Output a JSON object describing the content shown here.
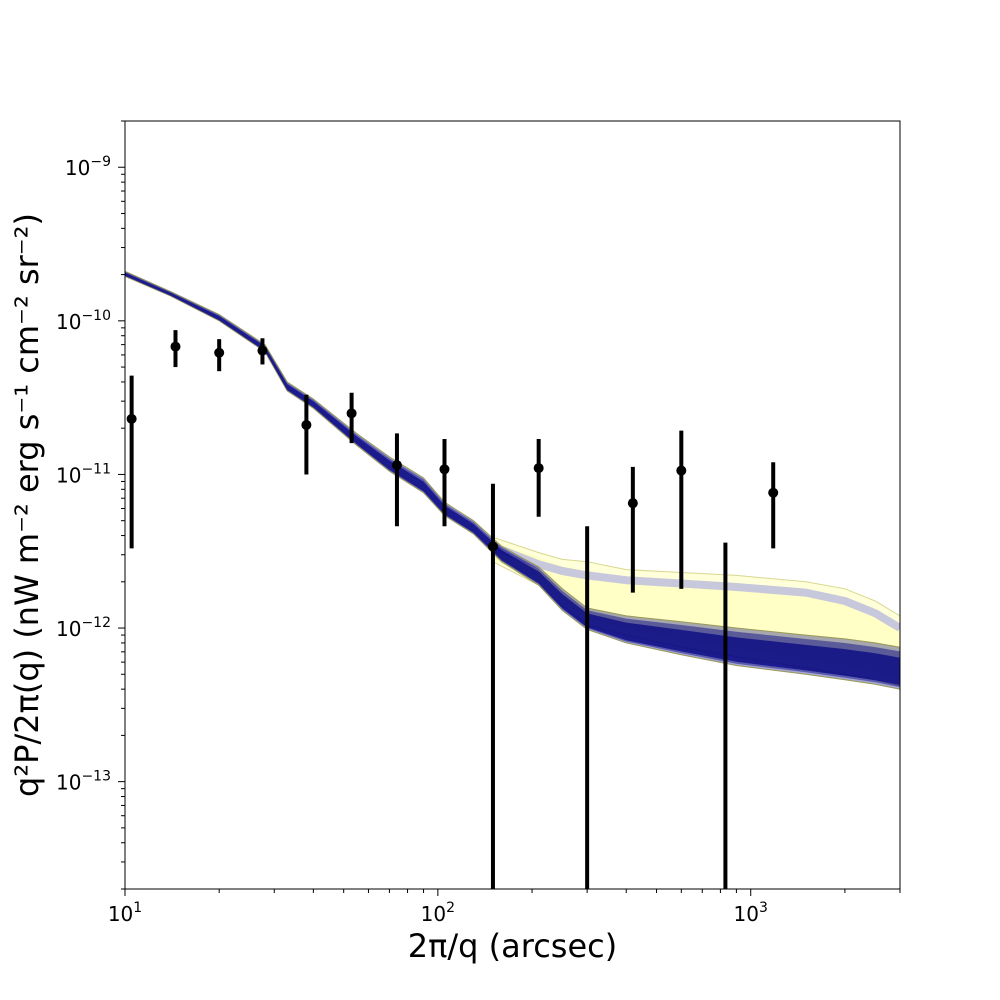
{
  "chart_data": {
    "type": "line",
    "xlabel": "2π/q (arcsec)",
    "ylabel": "q²P/2π(q) (nW m⁻² erg s⁻¹ cm⁻² sr⁻²)",
    "xscale": "log",
    "yscale": "log",
    "xlim": [
      10,
      3000
    ],
    "ylim": [
      2e-14,
      2e-09
    ],
    "x_ticks": [
      {
        "base": "10",
        "exp": "1",
        "value": 10
      },
      {
        "base": "10",
        "exp": "2",
        "value": 100
      },
      {
        "base": "10",
        "exp": "3",
        "value": 1000
      }
    ],
    "y_ticks": [
      {
        "base": "10",
        "exp": "−13",
        "value": 1e-13
      },
      {
        "base": "10",
        "exp": "−12",
        "value": 1e-12
      },
      {
        "base": "10",
        "exp": "−11",
        "value": 1e-11
      },
      {
        "base": "10",
        "exp": "−10",
        "value": 1e-10
      },
      {
        "base": "10",
        "exp": "−9",
        "value": 1e-09
      }
    ],
    "grid": false,
    "colors": {
      "model": "#000080",
      "alt_model": "#ffffc0",
      "alt_line": "#c8c8dc",
      "data": "#000000"
    },
    "data_points": [
      {
        "x": 10.5,
        "y": 2.3e-11,
        "ylow": 3.3e-12,
        "yhigh": 4.4e-11
      },
      {
        "x": 14.5,
        "y": 6.8e-11,
        "ylow": 5e-11,
        "yhigh": 8.7e-11
      },
      {
        "x": 20.0,
        "y": 6.2e-11,
        "ylow": 4.7e-11,
        "yhigh": 7.6e-11
      },
      {
        "x": 27.5,
        "y": 6.4e-11,
        "ylow": 5.2e-11,
        "yhigh": 7.7e-11
      },
      {
        "x": 38.0,
        "y": 2.1e-11,
        "ylow": 1e-11,
        "yhigh": 3.3e-11
      },
      {
        "x": 53.0,
        "y": 2.5e-11,
        "ylow": 1.6e-11,
        "yhigh": 3.4e-11
      },
      {
        "x": 74.0,
        "y": 1.15e-11,
        "ylow": 4.6e-12,
        "yhigh": 1.85e-11
      },
      {
        "x": 105.0,
        "y": 1.08e-11,
        "ylow": 4.6e-12,
        "yhigh": 1.7e-11
      },
      {
        "x": 150.0,
        "y": 3.4e-12,
        "ylow": 2e-14,
        "yhigh": 8.7e-12
      },
      {
        "x": 210.0,
        "y": 1.1e-11,
        "ylow": 5.3e-12,
        "yhigh": 1.7e-11
      },
      {
        "x": 300.0,
        "y": null,
        "ylow": 2e-14,
        "yhigh": 4.6e-12
      },
      {
        "x": 420.0,
        "y": 6.5e-12,
        "ylow": 1.7e-12,
        "yhigh": 1.12e-11
      },
      {
        "x": 600.0,
        "y": 1.06e-11,
        "ylow": 1.8e-12,
        "yhigh": 1.93e-11
      },
      {
        "x": 830.0,
        "y": null,
        "ylow": 2e-14,
        "yhigh": 3.6e-12
      },
      {
        "x": 1180.0,
        "y": 7.6e-12,
        "ylow": 3.3e-12,
        "yhigh": 1.2e-11
      }
    ],
    "model_band": {
      "x": [
        10,
        14,
        20,
        28,
        33,
        40,
        55,
        70,
        90,
        105,
        130,
        160,
        210,
        250,
        300,
        400,
        600,
        900,
        1500,
        2000,
        2500,
        3000
      ],
      "upper": [
        2.1e-10,
        1.55e-10,
        1.1e-10,
        7e-11,
        4e-11,
        3.1e-11,
        1.85e-11,
        1.3e-11,
        9.5e-12,
        6.6e-12,
        5e-12,
        3.4e-12,
        2.5e-12,
        1.8e-12,
        1.35e-12,
        1.2e-12,
        1.1e-12,
        1e-12,
        9e-13,
        8.5e-13,
        8e-13,
        7.5e-13
      ],
      "lower": [
        1.95e-10,
        1.45e-10,
        1e-10,
        6.3e-11,
        3.5e-11,
        2.7e-11,
        1.55e-11,
        1.05e-11,
        7.6e-12,
        5.4e-12,
        4.1e-12,
        2.7e-12,
        1.9e-12,
        1.3e-12,
        9.8e-13,
        8e-13,
        6.7e-13,
        5.7e-13,
        5e-13,
        4.6e-13,
        4.3e-13,
        4e-13
      ]
    },
    "alt_band": {
      "x": [
        150,
        210,
        250,
        300,
        400,
        600,
        900,
        1500,
        2000,
        2500,
        3000
      ],
      "upper": [
        3.9e-12,
        3.1e-12,
        2.8e-12,
        2.7e-12,
        2.4e-12,
        2.3e-12,
        2.2e-12,
        2e-12,
        1.8e-12,
        1.5e-12,
        1.2e-12
      ],
      "lower": [
        2.7e-12,
        1.9e-12,
        1.4e-12,
        1.05e-12,
        9e-13,
        7.5e-13,
        6.5e-13,
        5.5e-13,
        5e-13,
        4.6e-13,
        4.2e-13
      ]
    },
    "alt_line": {
      "x": [
        150,
        210,
        250,
        300,
        400,
        600,
        900,
        1500,
        2000,
        2500,
        3000
      ],
      "y": [
        3.4e-12,
        2.6e-12,
        2.35e-12,
        2.2e-12,
        2.05e-12,
        1.95e-12,
        1.85e-12,
        1.7e-12,
        1.5e-12,
        1.25e-12,
        1e-12
      ]
    }
  }
}
